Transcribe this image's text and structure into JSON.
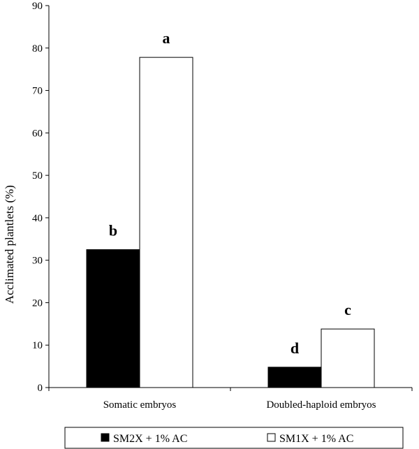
{
  "chart_data": {
    "type": "bar",
    "title": "",
    "xlabel": "",
    "ylabel": "Acclimated plantlets (%)",
    "ylim": [
      0,
      90
    ],
    "yticks": [
      0,
      10,
      20,
      30,
      40,
      50,
      60,
      70,
      80,
      90
    ],
    "grid": false,
    "legend_position": "bottom",
    "categories": [
      "Somatic embryos",
      "Doubled-haploid embryos"
    ],
    "series": [
      {
        "name": "SM2X + 1% AC",
        "color": "#000000",
        "values": [
          32.5,
          4.8
        ],
        "annotations": [
          "b",
          "d"
        ]
      },
      {
        "name": "SM1X + 1% AC",
        "color": "#ffffff",
        "values": [
          77.8,
          13.8
        ],
        "annotations": [
          "a",
          "c"
        ]
      }
    ]
  }
}
